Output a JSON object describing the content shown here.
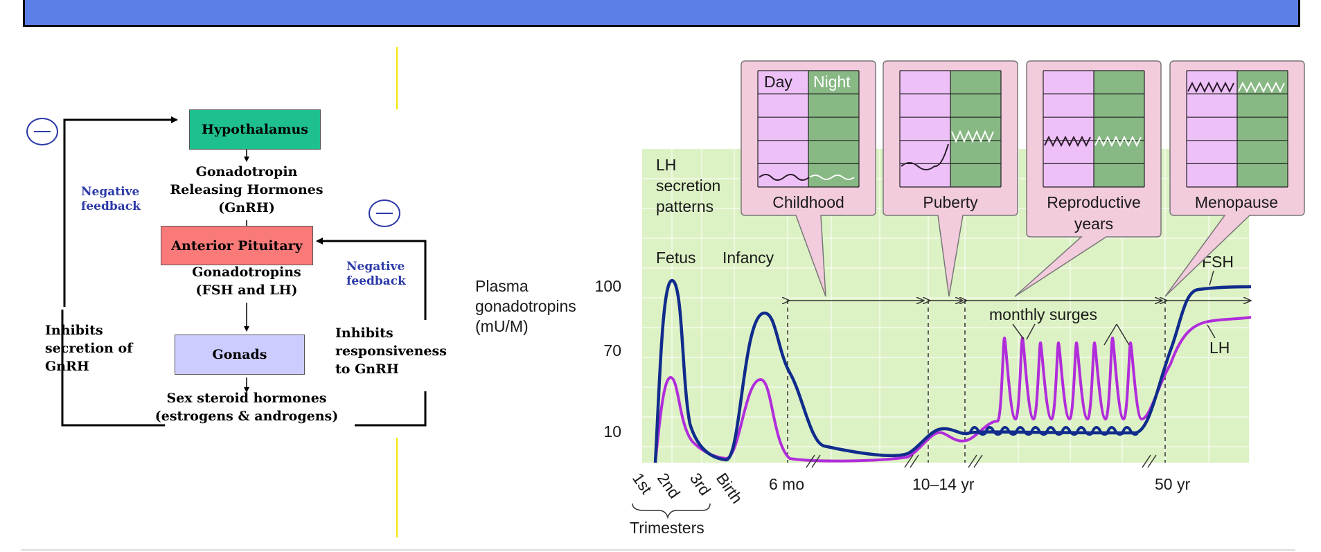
{
  "colors": {
    "title_bar": "#5b7fe6",
    "hypothalamus": "#1fc08f",
    "pituitary": "#fa7a7a",
    "gonads": "#ccccff",
    "feedback_text": "#2c3aa8",
    "chart_bg": "#ddf2c4",
    "panel_bg": "#f2cbdc",
    "day": "#eec0f8",
    "night": "#88b884",
    "fsh": "#102c8c",
    "lh": "#b02ddb"
  },
  "flowchart": {
    "hypothalamus": "Hypothalamus",
    "gnrh_line1": "Gonadotropin",
    "gnrh_line2": "Releasing Hormones",
    "gnrh_line3": "(GnRH)",
    "anterior_pituitary": "Anterior Pituitary",
    "gonadotropins_line1": "Gonadotropins",
    "gonadotropins_line2": "(FSH and LH)",
    "gonads": "Gonads",
    "sex_steroids_line1": "Sex steroid hormones",
    "sex_steroids_line2": "(estrogens & androgens)",
    "neg_feedback_left_1": "Negative",
    "neg_feedback_left_2": "feedback",
    "neg_feedback_right_1": "Negative",
    "neg_feedback_right_2": "feedback",
    "inhibits_left_1": "Inhibits",
    "inhibits_left_2": "secretion of",
    "inhibits_left_3": "GnRH",
    "inhibits_right_1": "Inhibits",
    "inhibits_right_2": "responsiveness",
    "inhibits_right_3": "to  GnRH"
  },
  "chart_data": {
    "type": "line",
    "ylabel_1": "Plasma",
    "ylabel_2": "gonadotropins",
    "ylabel_3": "(mU/M)",
    "y_ticks": [
      "100",
      "70",
      "10"
    ],
    "x_ticks_trimesters": [
      "1st",
      "2nd",
      "3rd"
    ],
    "x_tick_birth": "Birth",
    "trimesters_label": "Trimesters",
    "x_ticks": [
      "6 mo",
      "10–14 yr",
      "50 yr"
    ],
    "annotations": {
      "lh_patterns_1": "LH",
      "lh_patterns_2": "secretion",
      "lh_patterns_3": "patterns",
      "fetus": "Fetus",
      "infancy": "Infancy",
      "monthly_surges": "monthly surges",
      "fsh": "FSH",
      "lh": "LH"
    },
    "panels": [
      {
        "label": "Childhood",
        "day": "Day",
        "night": "Night"
      },
      {
        "label": "Puberty"
      },
      {
        "label_1": "Reproductive",
        "label_2": "years"
      },
      {
        "label": "Menopause"
      }
    ],
    "series": [
      {
        "name": "FSH",
        "color": "#102c8c"
      },
      {
        "name": "LH",
        "color": "#b02ddb"
      }
    ]
  }
}
